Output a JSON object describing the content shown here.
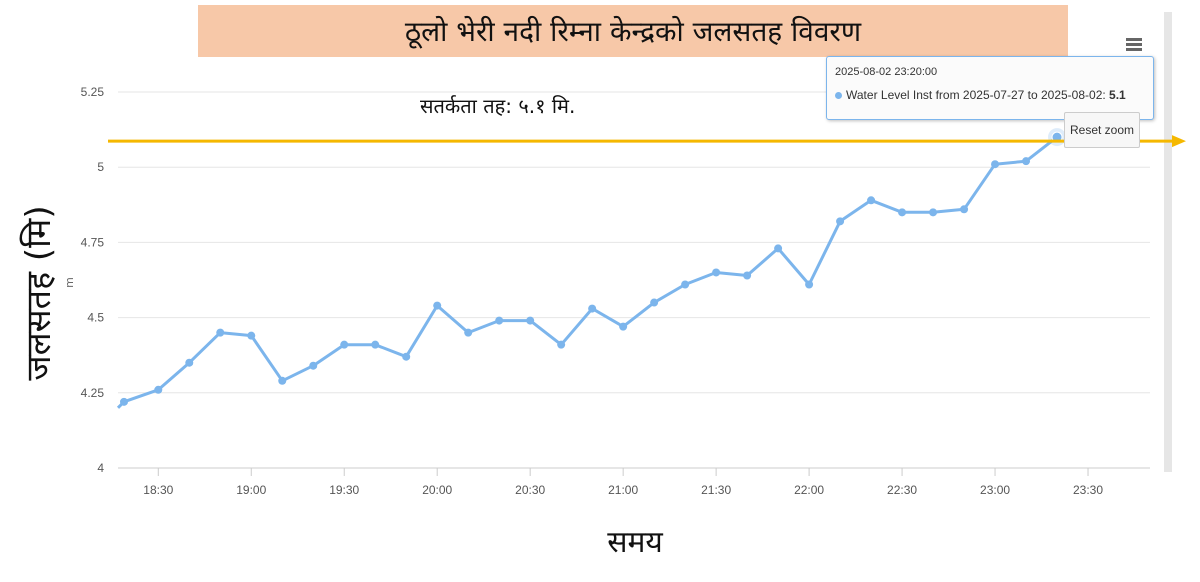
{
  "title": "ठूलो भेरी नदी रिम्ना केन्द्रको जलसतह विवरण",
  "warning_label": "सतर्कता तह: ५.१ मि.",
  "tooltip": {
    "date": "2025-08-02 23:20:00",
    "series_label": "Water Level Inst from 2025-07-27 to 2025-08-02:",
    "value": "5.1"
  },
  "reset_zoom_label": "Reset zoom",
  "colors": {
    "series": "#7cb5ec",
    "warning_line": "#f5b800",
    "title_bg": "#f7c8a8"
  },
  "chart_data": {
    "type": "line",
    "ylabel": "जलसतह (मि)",
    "unit": "m",
    "xlabel": "समय",
    "ylim": [
      4,
      5.25
    ],
    "y_ticks": [
      "4",
      "4.25",
      "4.5",
      "4.75",
      "5",
      "5.25"
    ],
    "x_ticks": [
      "18:30",
      "19:00",
      "19:30",
      "20:00",
      "20:30",
      "21:00",
      "21:30",
      "22:00",
      "22:30",
      "23:00",
      "23:30"
    ],
    "warning_level": 5.1,
    "series": [
      {
        "name": "Water Level Inst from 2025-07-27 to 2025-08-02",
        "x": [
          "18:20",
          "18:30",
          "18:40",
          "18:50",
          "19:00",
          "19:10",
          "19:20",
          "19:30",
          "19:40",
          "19:50",
          "20:00",
          "20:10",
          "20:20",
          "20:30",
          "20:40",
          "20:50",
          "21:00",
          "21:10",
          "21:20",
          "21:30",
          "21:40",
          "21:50",
          "22:00",
          "22:10",
          "22:20",
          "22:30",
          "22:40",
          "22:50",
          "23:00",
          "23:10",
          "23:20"
        ],
        "values": [
          4.22,
          4.26,
          4.35,
          4.45,
          4.44,
          4.29,
          4.34,
          4.41,
          4.41,
          4.37,
          4.54,
          4.45,
          4.49,
          4.49,
          4.41,
          4.53,
          4.47,
          4.55,
          4.61,
          4.65,
          4.64,
          4.73,
          4.61,
          4.82,
          4.89,
          4.85,
          4.85,
          4.86,
          5.01,
          5.02,
          5.1
        ]
      }
    ]
  }
}
